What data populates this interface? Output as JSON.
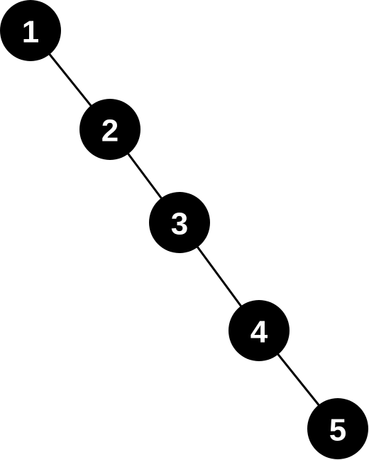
{
  "diagram": {
    "type": "binary-tree",
    "nodes": [
      {
        "id": "n1",
        "label": "1"
      },
      {
        "id": "n2",
        "label": "2"
      },
      {
        "id": "n3",
        "label": "3"
      },
      {
        "id": "n4",
        "label": "4"
      },
      {
        "id": "n5",
        "label": "5"
      }
    ],
    "edges": [
      {
        "from": "n1",
        "to": "n2"
      },
      {
        "from": "n2",
        "to": "n3"
      },
      {
        "from": "n3",
        "to": "n4"
      },
      {
        "from": "n4",
        "to": "n5"
      }
    ],
    "colors": {
      "node_fill": "#000000",
      "node_text": "#ffffff",
      "edge": "#000000",
      "background": "#ffffff"
    }
  }
}
